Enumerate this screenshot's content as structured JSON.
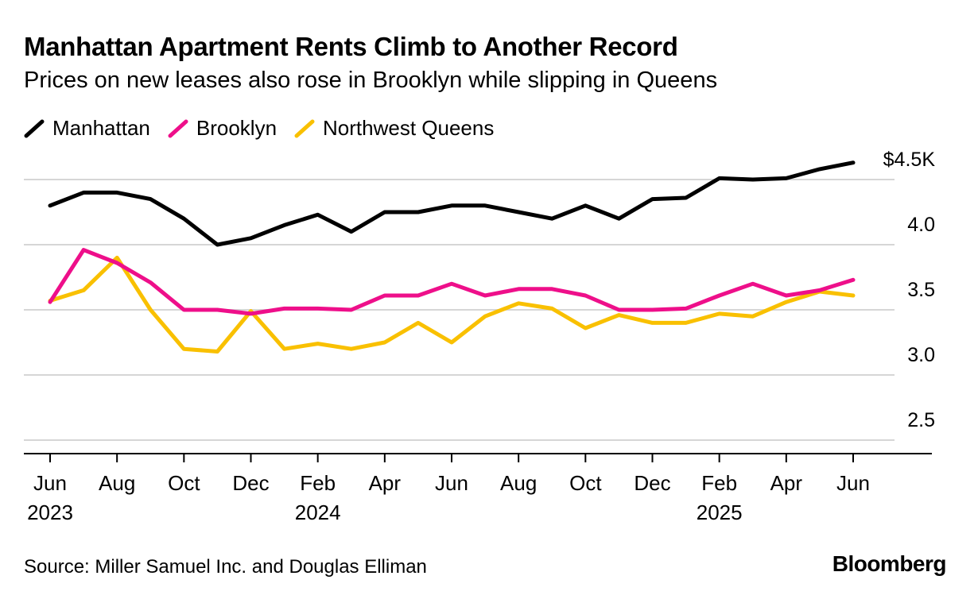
{
  "header": {
    "title": "Manhattan Apartment Rents Climb to Another Record",
    "subtitle": "Prices on new leases also rose in Brooklyn while slipping in Queens"
  },
  "footer": {
    "source": "Source: Miller Samuel Inc. and Douglas Elliman",
    "brand": "Bloomberg"
  },
  "chart_data": {
    "type": "line",
    "title": "Manhattan Apartment Rents Climb to Another Record",
    "subtitle": "Prices on new leases also rose in Brooklyn while slipping in Queens",
    "x": [
      "2023-06",
      "2023-07",
      "2023-08",
      "2023-09",
      "2023-10",
      "2023-11",
      "2023-12",
      "2024-01",
      "2024-02",
      "2024-03",
      "2024-04",
      "2024-05",
      "2024-06",
      "2024-07",
      "2024-08",
      "2024-09",
      "2024-10",
      "2024-11",
      "2024-12",
      "2025-01",
      "2025-02",
      "2025-03",
      "2025-04",
      "2025-05",
      "2025-06"
    ],
    "x_tick_labels": [
      {
        "x": "2023-06",
        "month": "Jun",
        "year": "2023"
      },
      {
        "x": "2023-08",
        "month": "Aug",
        "year": ""
      },
      {
        "x": "2023-10",
        "month": "Oct",
        "year": ""
      },
      {
        "x": "2023-12",
        "month": "Dec",
        "year": ""
      },
      {
        "x": "2024-02",
        "month": "Feb",
        "year": "2024"
      },
      {
        "x": "2024-04",
        "month": "Apr",
        "year": ""
      },
      {
        "x": "2024-06",
        "month": "Jun",
        "year": ""
      },
      {
        "x": "2024-08",
        "month": "Aug",
        "year": ""
      },
      {
        "x": "2024-10",
        "month": "Oct",
        "year": ""
      },
      {
        "x": "2024-12",
        "month": "Dec",
        "year": ""
      },
      {
        "x": "2025-02",
        "month": "Feb",
        "year": "2025"
      },
      {
        "x": "2025-04",
        "month": "Apr",
        "year": ""
      },
      {
        "x": "2025-06",
        "month": "Jun",
        "year": ""
      }
    ],
    "y_ticks": [
      {
        "value": 2.5,
        "label": "2.5"
      },
      {
        "value": 3.0,
        "label": "3.0"
      },
      {
        "value": 3.5,
        "label": "3.5"
      },
      {
        "value": 4.0,
        "label": "4.0"
      },
      {
        "value": 4.5,
        "label": "$4.5K"
      }
    ],
    "ylim": [
      2.4,
      4.65
    ],
    "y_axis_position": "right",
    "grid": true,
    "legend_position": "top-left",
    "series": [
      {
        "name": "Manhattan",
        "color": "#000000",
        "values": [
          4.3,
          4.4,
          4.4,
          4.35,
          4.2,
          4.0,
          4.05,
          4.15,
          4.23,
          4.1,
          4.25,
          4.25,
          4.3,
          4.3,
          4.25,
          4.2,
          4.3,
          4.2,
          4.35,
          4.36,
          4.51,
          4.5,
          4.51,
          4.58,
          4.63
        ]
      },
      {
        "name": "Brooklyn",
        "color": "#ee0f8a",
        "values": [
          3.56,
          3.96,
          3.86,
          3.71,
          3.5,
          3.5,
          3.47,
          3.51,
          3.51,
          3.5,
          3.61,
          3.61,
          3.7,
          3.61,
          3.66,
          3.66,
          3.61,
          3.5,
          3.5,
          3.51,
          3.61,
          3.7,
          3.61,
          3.65,
          3.73
        ]
      },
      {
        "name": "Northwest Queens",
        "color": "#f9c000",
        "values": [
          3.57,
          3.65,
          3.9,
          3.5,
          3.2,
          3.18,
          3.49,
          3.2,
          3.24,
          3.2,
          3.25,
          3.4,
          3.25,
          3.45,
          3.55,
          3.51,
          3.36,
          3.46,
          3.4,
          3.4,
          3.47,
          3.45,
          3.56,
          3.64,
          3.61
        ]
      }
    ]
  }
}
